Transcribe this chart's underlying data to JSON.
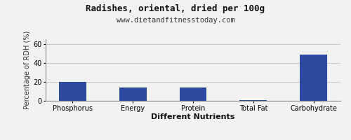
{
  "title": "Radishes, oriental, dried per 100g",
  "subtitle": "www.dietandfitnesstoday.com",
  "xlabel": "Different Nutrients",
  "ylabel": "Percentage of RDH (%)",
  "categories": [
    "Phosphorus",
    "Energy",
    "Protein",
    "Total Fat",
    "Carbohydrate"
  ],
  "values": [
    20,
    14,
    14,
    1,
    49
  ],
  "bar_color": "#2b4a9e",
  "ylim": [
    0,
    65
  ],
  "yticks": [
    0,
    20,
    40,
    60
  ],
  "background_color": "#f2f2f2",
  "plot_bg_color": "#f2f2f2",
  "grid_color": "#cccccc",
  "title_fontsize": 9,
  "subtitle_fontsize": 7.5,
  "xlabel_fontsize": 8,
  "ylabel_fontsize": 7,
  "tick_fontsize": 7,
  "bar_width": 0.45
}
